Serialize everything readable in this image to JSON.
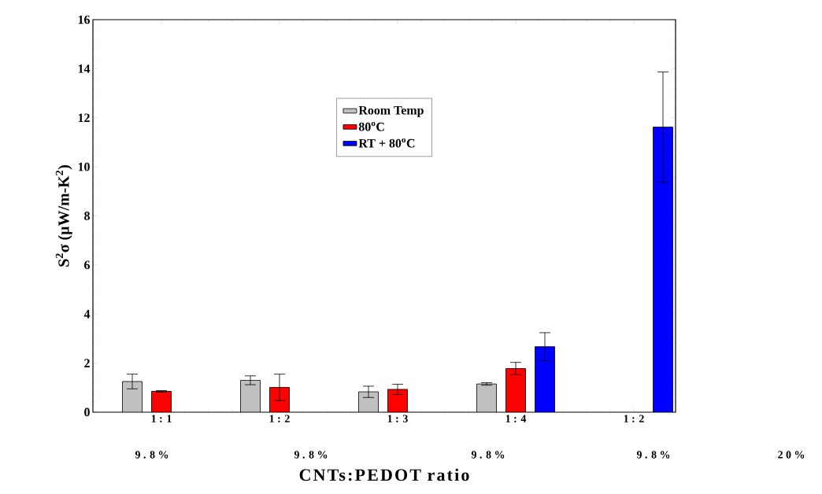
{
  "chart_data": {
    "type": "bar",
    "xlabel": "CNTs:PEDOT ratio",
    "ylabel": "S$^{2}$σ (μW/m-K$^{2}$)",
    "categories": [
      "1 : 1",
      "1 : 2",
      "1 : 3",
      "1 : 4",
      "1 : 2"
    ],
    "series": [
      {
        "name": "Room Temp",
        "color": "#c0c0c0",
        "values": [
          1.25,
          1.3,
          0.83,
          1.15,
          null
        ],
        "errors": [
          0.3,
          0.18,
          0.23,
          0.05,
          null
        ]
      },
      {
        "name": "80$^{o}$C",
        "color": "#ff0000",
        "values": [
          0.85,
          1.01,
          0.93,
          1.78,
          null
        ],
        "errors": [
          0.03,
          0.54,
          0.21,
          0.25,
          null
        ]
      },
      {
        "name": "RT + 80$^{o}$C",
        "color": "#0000ff",
        "values": [
          null,
          null,
          null,
          2.67,
          11.62
        ],
        "errors": [
          null,
          null,
          null,
          0.57,
          2.25
        ]
      }
    ],
    "ylim": [
      0,
      16
    ],
    "yticks": [
      0,
      2,
      4,
      6,
      8,
      10,
      12,
      14,
      16
    ],
    "grid": false,
    "legend": "top",
    "annotations": [
      "9 . 8 %",
      "9 . 8 %",
      "9 . 8 %",
      "9 . 8 %",
      "2 0 %"
    ]
  }
}
